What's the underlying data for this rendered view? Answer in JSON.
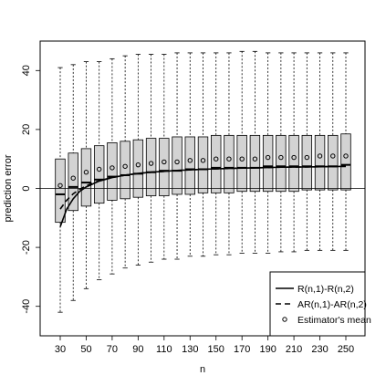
{
  "chart_data": {
    "type": "boxplot",
    "xlabel": "n",
    "ylabel": "prediction error",
    "ylim": [
      -50,
      50
    ],
    "y_ticks": [
      -40,
      -20,
      0,
      20,
      40
    ],
    "x_tick_labels": [
      "30",
      "50",
      "70",
      "90",
      "110",
      "130",
      "150",
      "170",
      "190",
      "210",
      "230",
      "250"
    ],
    "reference_line_y": 0,
    "grid": false,
    "legend_position": "bottom-right",
    "legend": [
      {
        "label": "R(n,1)-R(n,2)",
        "style": "solid-line"
      },
      {
        "label": "AR(n,1)-AR(n,2)",
        "style": "dashed-line"
      },
      {
        "label": "Estimator's mean",
        "style": "circle-point"
      }
    ],
    "n": [
      30,
      40,
      50,
      60,
      70,
      80,
      90,
      100,
      110,
      120,
      130,
      140,
      150,
      160,
      170,
      180,
      190,
      200,
      210,
      220,
      230,
      240,
      250
    ],
    "boxes": [
      {
        "n": 30,
        "low": -42,
        "q1": -11.5,
        "median": -2,
        "q3": 10,
        "high": 41
      },
      {
        "n": 40,
        "low": -38,
        "q1": -7.5,
        "median": 0.5,
        "q3": 12,
        "high": 42
      },
      {
        "n": 50,
        "low": -34,
        "q1": -6,
        "median": 2,
        "q3": 13.5,
        "high": 43
      },
      {
        "n": 60,
        "low": -31,
        "q1": -5,
        "median": 3,
        "q3": 14.5,
        "high": 43
      },
      {
        "n": 70,
        "low": -29,
        "q1": -4,
        "median": 4,
        "q3": 15.5,
        "high": 44
      },
      {
        "n": 80,
        "low": -27,
        "q1": -3.5,
        "median": 4.5,
        "q3": 16,
        "high": 45
      },
      {
        "n": 90,
        "low": -26,
        "q1": -3,
        "median": 5,
        "q3": 16.5,
        "high": 45.5
      },
      {
        "n": 100,
        "low": -25,
        "q1": -2.5,
        "median": 5.5,
        "q3": 17,
        "high": 45.5
      },
      {
        "n": 110,
        "low": -24,
        "q1": -2.5,
        "median": 6,
        "q3": 17,
        "high": 45.5
      },
      {
        "n": 120,
        "low": -24,
        "q1": -2,
        "median": 6,
        "q3": 17.5,
        "high": 46
      },
      {
        "n": 130,
        "low": -23,
        "q1": -2,
        "median": 6.5,
        "q3": 17.5,
        "high": 46
      },
      {
        "n": 140,
        "low": -23,
        "q1": -1.5,
        "median": 6.5,
        "q3": 17.5,
        "high": 46
      },
      {
        "n": 150,
        "low": -22.5,
        "q1": -1.5,
        "median": 7,
        "q3": 18,
        "high": 46
      },
      {
        "n": 160,
        "low": -22.5,
        "q1": -1.5,
        "median": 7,
        "q3": 18,
        "high": 46
      },
      {
        "n": 170,
        "low": -22,
        "q1": -1,
        "median": 7,
        "q3": 18,
        "high": 46.5
      },
      {
        "n": 180,
        "low": -22,
        "q1": -1,
        "median": 7,
        "q3": 18,
        "high": 46.5
      },
      {
        "n": 190,
        "low": -22,
        "q1": -1,
        "median": 7.5,
        "q3": 18,
        "high": 46
      },
      {
        "n": 200,
        "low": -21.5,
        "q1": -1,
        "median": 7.5,
        "q3": 18,
        "high": 46
      },
      {
        "n": 210,
        "low": -21.5,
        "q1": -1,
        "median": 7.5,
        "q3": 18,
        "high": 46
      },
      {
        "n": 220,
        "low": -21,
        "q1": -0.5,
        "median": 7.5,
        "q3": 18,
        "high": 46
      },
      {
        "n": 230,
        "low": -21,
        "q1": -0.5,
        "median": 7.5,
        "q3": 18,
        "high": 46
      },
      {
        "n": 240,
        "low": -21,
        "q1": -0.5,
        "median": 7.5,
        "q3": 18,
        "high": 46
      },
      {
        "n": 250,
        "low": -21,
        "q1": -0.5,
        "median": 8,
        "q3": 18.5,
        "high": 46
      }
    ],
    "series": [
      {
        "name": "Estimator's mean",
        "x": [
          30,
          40,
          50,
          60,
          70,
          80,
          90,
          100,
          110,
          120,
          130,
          140,
          150,
          160,
          170,
          180,
          190,
          200,
          210,
          220,
          230,
          240,
          250
        ],
        "values": [
          1,
          3.5,
          5.5,
          6.5,
          7,
          7.5,
          8,
          8.5,
          9,
          9,
          9.5,
          9.5,
          10,
          10,
          10,
          10,
          10.5,
          10.5,
          10.5,
          10.5,
          11,
          11,
          11
        ]
      },
      {
        "name": "R(n,1)-R(n,2)",
        "x": [
          30,
          35,
          40,
          45,
          50,
          60,
          70,
          80,
          90,
          100,
          120,
          140,
          160,
          180,
          200,
          220,
          250
        ],
        "values": [
          -13,
          -7,
          -3.5,
          -1,
          0.5,
          2.5,
          3.7,
          4.5,
          5.1,
          5.5,
          6.1,
          6.5,
          6.8,
          7,
          7.2,
          7.3,
          7.5
        ]
      },
      {
        "name": "AR(n,1)-AR(n,2)",
        "x": [
          30,
          35,
          40,
          45,
          50,
          60,
          70,
          80,
          90,
          100,
          120,
          140,
          160,
          180,
          200,
          220,
          250
        ],
        "values": [
          -7,
          -4,
          -1.8,
          -0.3,
          0.9,
          2.6,
          3.7,
          4.5,
          5.1,
          5.5,
          6.1,
          6.5,
          6.8,
          7,
          7.2,
          7.3,
          7.5
        ]
      }
    ]
  }
}
